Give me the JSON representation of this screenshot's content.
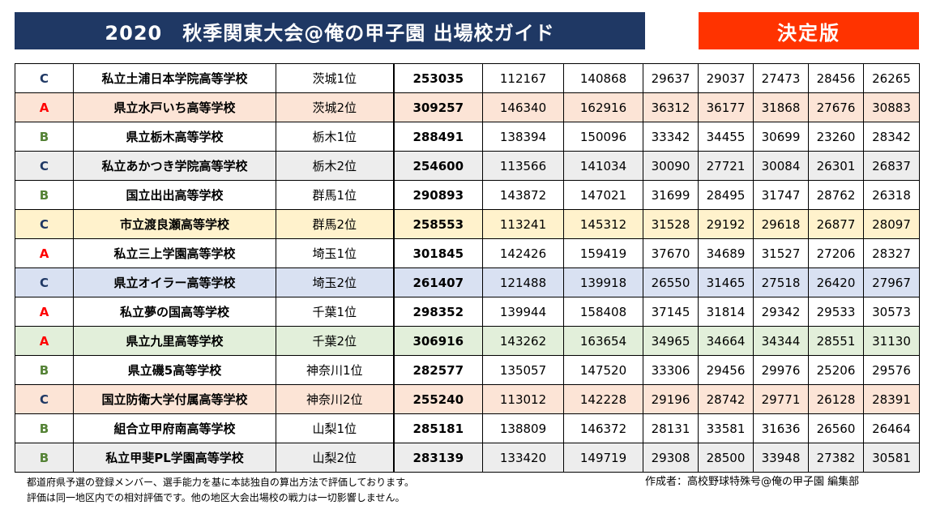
{
  "header": {
    "title": "2020　秋季関東大会@俺の甲子園 出場校ガイド",
    "badge": "決定版"
  },
  "colors": {
    "title_bg": "#1f3864",
    "badge_bg": "#ff3300",
    "grade_A": "#ff0000",
    "grade_B": "#548235",
    "grade_C": "#1f3864"
  },
  "rows": [
    {
      "grade": "C",
      "school": "私立土浦日本学院高等学校",
      "rank": "茨城1位",
      "total": "253035",
      "v1": "112167",
      "v2": "140868",
      "v3": "29637",
      "v4": "29037",
      "v5": "27473",
      "v6": "28456",
      "v7": "26265",
      "bg": "white"
    },
    {
      "grade": "A",
      "school": "県立水戸いち高等学校",
      "rank": "茨城2位",
      "total": "309257",
      "v1": "146340",
      "v2": "162916",
      "v3": "36312",
      "v4": "36177",
      "v5": "31868",
      "v6": "27676",
      "v7": "30883",
      "bg": "peach"
    },
    {
      "grade": "B",
      "school": "県立栃木高等学校",
      "rank": "栃木1位",
      "total": "288491",
      "v1": "138394",
      "v2": "150096",
      "v3": "33342",
      "v4": "34455",
      "v5": "30699",
      "v6": "23260",
      "v7": "28342",
      "bg": "white"
    },
    {
      "grade": "C",
      "school": "私立あかつき学院高等学校",
      "rank": "栃木2位",
      "total": "254600",
      "v1": "113566",
      "v2": "141034",
      "v3": "30090",
      "v4": "27721",
      "v5": "30084",
      "v6": "26301",
      "v7": "26837",
      "bg": "gray"
    },
    {
      "grade": "B",
      "school": "国立出出高等学校",
      "rank": "群馬1位",
      "total": "290893",
      "v1": "143872",
      "v2": "147021",
      "v3": "31699",
      "v4": "28495",
      "v5": "31747",
      "v6": "28762",
      "v7": "26318",
      "bg": "white"
    },
    {
      "grade": "C",
      "school": "市立渡良瀬高等学校",
      "rank": "群馬2位",
      "total": "258553",
      "v1": "113241",
      "v2": "145312",
      "v3": "31528",
      "v4": "29192",
      "v5": "29618",
      "v6": "26877",
      "v7": "28097",
      "bg": "yellow"
    },
    {
      "grade": "A",
      "school": "私立三上学園高等学校",
      "rank": "埼玉1位",
      "total": "301845",
      "v1": "142426",
      "v2": "159419",
      "v3": "37670",
      "v4": "34689",
      "v5": "31527",
      "v6": "27206",
      "v7": "28327",
      "bg": "white"
    },
    {
      "grade": "C",
      "school": "県立オイラー高等学校",
      "rank": "埼玉2位",
      "total": "261407",
      "v1": "121488",
      "v2": "139918",
      "v3": "26550",
      "v4": "31465",
      "v5": "27518",
      "v6": "26420",
      "v7": "27967",
      "bg": "blue"
    },
    {
      "grade": "A",
      "school": "私立夢の国高等学校",
      "rank": "千葉1位",
      "total": "298352",
      "v1": "139944",
      "v2": "158408",
      "v3": "37145",
      "v4": "31814",
      "v5": "29342",
      "v6": "29533",
      "v7": "30573",
      "bg": "white"
    },
    {
      "grade": "A",
      "school": "県立九里高等学校",
      "rank": "千葉2位",
      "total": "306916",
      "v1": "143262",
      "v2": "163654",
      "v3": "34965",
      "v4": "34664",
      "v5": "34344",
      "v6": "28551",
      "v7": "31130",
      "bg": "green"
    },
    {
      "grade": "B",
      "school": "県立磯5高等学校",
      "rank": "神奈川1位",
      "total": "282577",
      "v1": "135057",
      "v2": "147520",
      "v3": "33306",
      "v4": "29456",
      "v5": "29976",
      "v6": "25206",
      "v7": "29576",
      "bg": "white"
    },
    {
      "grade": "C",
      "school": "国立防衛大学付属高等学校",
      "rank": "神奈川2位",
      "total": "255240",
      "v1": "113012",
      "v2": "142228",
      "v3": "29196",
      "v4": "28742",
      "v5": "29771",
      "v6": "26128",
      "v7": "28391",
      "bg": "peach"
    },
    {
      "grade": "B",
      "school": "組合立甲府南高等学校",
      "rank": "山梨1位",
      "total": "285181",
      "v1": "138809",
      "v2": "146372",
      "v3": "28131",
      "v4": "33581",
      "v5": "31636",
      "v6": "26560",
      "v7": "26464",
      "bg": "white"
    },
    {
      "grade": "B",
      "school": "私立甲斐PL学園高等学校",
      "rank": "山梨2位",
      "total": "283139",
      "v1": "133420",
      "v2": "149719",
      "v3": "29308",
      "v4": "28500",
      "v5": "33948",
      "v6": "27382",
      "v7": "30581",
      "bg": "gray"
    }
  ],
  "footer": {
    "note1": "都道府県予選の登録メンバー、選手能力を基に本誌独自の算出方法で評価しております。",
    "note2": "評価は同一地区内での相対評価です。他の地区大会出場校の戦力は一切影響しません。",
    "author": "作成者：高校野球特殊号@俺の甲子園 編集部"
  }
}
